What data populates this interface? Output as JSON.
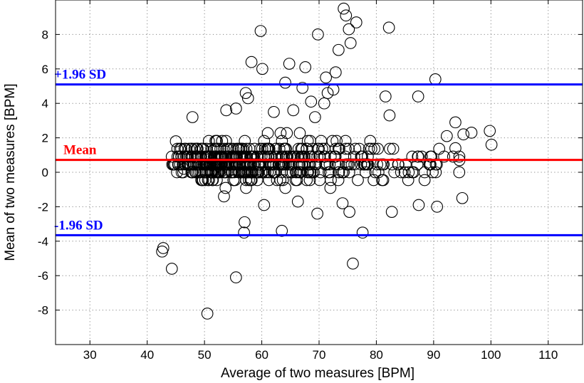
{
  "chart_data": {
    "type": "scatter",
    "title": "",
    "xlabel": "Average of two measures [BPM]",
    "ylabel": "Mean of two measures [BPM]",
    "xlim": [
      24,
      116
    ],
    "ylim": [
      -10,
      10
    ],
    "xticks": [
      30,
      40,
      50,
      60,
      70,
      80,
      90,
      100,
      110
    ],
    "yticks": [
      -8,
      -6,
      -4,
      -2,
      0,
      2,
      4,
      6,
      8
    ],
    "grid": true,
    "grid_style": "dotted",
    "marker": "open-circle",
    "reference_lines": [
      {
        "label": "+1.96 SD",
        "y": 5.1,
        "color": "#0000ff"
      },
      {
        "label": "Mean",
        "y": 0.72,
        "color": "#ff0000"
      },
      {
        "label": "-1.96 SD",
        "y": -3.65,
        "color": "#0000ff"
      }
    ],
    "outliers": [
      [
        74.3,
        9.5
      ],
      [
        74.7,
        9.1
      ],
      [
        76.5,
        8.7
      ],
      [
        75.2,
        8.3
      ],
      [
        82.2,
        8.4
      ],
      [
        59.8,
        8.2
      ],
      [
        69.8,
        8.0
      ],
      [
        75.5,
        7.5
      ],
      [
        73.4,
        7.1
      ],
      [
        58.2,
        6.4
      ],
      [
        64.8,
        6.3
      ],
      [
        60.1,
        6.0
      ],
      [
        67.6,
        6.1
      ],
      [
        72.9,
        5.8
      ],
      [
        71.2,
        5.5
      ],
      [
        90.3,
        5.4
      ],
      [
        64.1,
        5.2
      ],
      [
        67.1,
        4.9
      ],
      [
        57.2,
        4.6
      ],
      [
        57.6,
        4.3
      ],
      [
        71.5,
        4.6
      ],
      [
        72.5,
        4.8
      ],
      [
        87.3,
        4.4
      ],
      [
        81.6,
        4.4
      ],
      [
        68.6,
        4.1
      ],
      [
        65.5,
        3.6
      ],
      [
        70.9,
        4.0
      ],
      [
        53.8,
        3.6
      ],
      [
        55.5,
        3.7
      ],
      [
        47.9,
        3.2
      ],
      [
        62.1,
        3.5
      ],
      [
        69.3,
        3.2
      ],
      [
        82.3,
        3.3
      ],
      [
        93.8,
        2.9
      ],
      [
        99.8,
        2.4
      ],
      [
        100.1,
        1.6
      ],
      [
        96.6,
        2.3
      ],
      [
        95.2,
        2.2
      ],
      [
        92.3,
        2.1
      ],
      [
        45.0,
        1.8
      ],
      [
        42.8,
        -4.4
      ],
      [
        42.6,
        -4.6
      ],
      [
        44.3,
        -5.6
      ],
      [
        55.5,
        -6.1
      ],
      [
        50.5,
        -8.2
      ],
      [
        75.9,
        -5.3
      ],
      [
        77.6,
        -3.5
      ],
      [
        56.9,
        -3.5
      ],
      [
        57.0,
        -2.9
      ],
      [
        63.5,
        -3.4
      ],
      [
        69.7,
        -2.4
      ],
      [
        75.3,
        -2.3
      ],
      [
        82.7,
        -2.3
      ],
      [
        87.4,
        -1.9
      ],
      [
        90.6,
        -2.0
      ],
      [
        95.0,
        -1.5
      ],
      [
        74.1,
        -1.8
      ],
      [
        66.3,
        -1.7
      ],
      [
        60.4,
        -1.9
      ],
      [
        53.4,
        -1.4
      ],
      [
        46.4,
        0.2
      ],
      [
        94.5,
        0.7
      ],
      [
        93.8,
        1.4
      ]
    ]
  }
}
